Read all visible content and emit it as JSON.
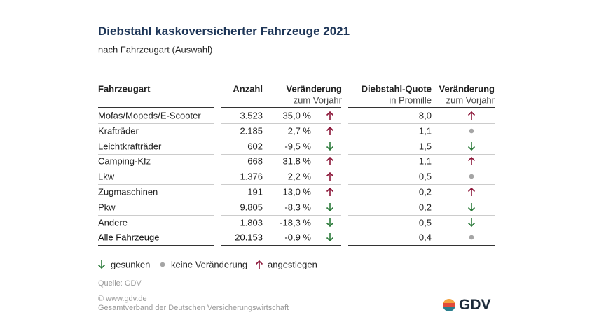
{
  "header": {
    "title": "Diebstahl kaskoversicherter Fahrzeuge 2021",
    "subtitle": "nach Fahrzeugart (Auswahl)"
  },
  "table": {
    "headers": [
      [
        "Fahrzeugart"
      ],
      [
        "Anzahl"
      ],
      [
        "Veränderung",
        "zum Vorjahr"
      ],
      [
        "Diebstahl-Quote",
        "in Promille"
      ],
      [
        "Veränderung",
        "zum Vorjahr"
      ]
    ],
    "rows": [
      [
        "Mofas/Mopeds/E-Scooter",
        "3.523",
        "35,0 %",
        "up",
        "8,0",
        "up"
      ],
      [
        "Krafträder",
        "2.185",
        "2,7 %",
        "up",
        "1,1",
        "same"
      ],
      [
        "Leichtkrafträder",
        "602",
        "-9,5 %",
        "down",
        "1,5",
        "down"
      ],
      [
        "Camping-Kfz",
        "668",
        "31,8 %",
        "up",
        "1,1",
        "up"
      ],
      [
        "Lkw",
        "1.376",
        "2,2 %",
        "up",
        "0,5",
        "same"
      ],
      [
        "Zugmaschinen",
        "191",
        "13,0 %",
        "up",
        "0,2",
        "up"
      ],
      [
        "Pkw",
        "9.805",
        "-8,3 %",
        "down",
        "0,2",
        "down"
      ],
      [
        "Andere",
        "1.803",
        "-18,3 %",
        "down",
        "0,5",
        "down"
      ]
    ],
    "total": [
      "Alle Fahrzeuge",
      "20.153",
      "-0,9 %",
      "down",
      "0,4",
      "same"
    ]
  },
  "legend": [
    {
      "trend": "down",
      "label": "gesunken"
    },
    {
      "trend": "same",
      "label": "keine Veränderung"
    },
    {
      "trend": "up",
      "label": "angestiegen"
    }
  ],
  "footer": {
    "source": "Quelle: GDV",
    "website": "© www.gdv.de",
    "organization": "Gesamtverband der Deutschen Versicherungswirtschaft",
    "logo": "GDV"
  }
}
